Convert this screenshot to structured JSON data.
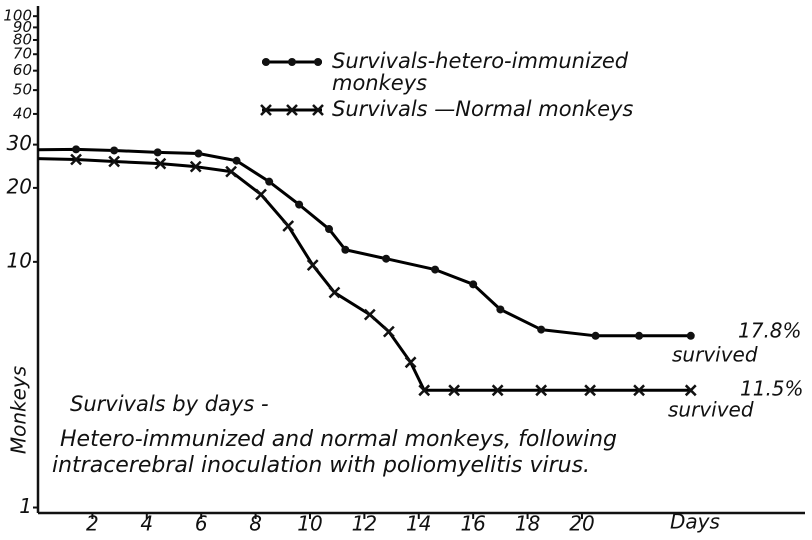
{
  "chart_data": {
    "type": "line",
    "x_label": "Days",
    "y_label": "Monkeys",
    "log_y": true,
    "xlim": [
      0,
      28.2
    ],
    "ylim": [
      0.95,
      110
    ],
    "xticks": [
      2,
      4,
      6,
      8,
      10,
      12,
      14,
      16,
      18,
      20
    ],
    "yticks": [
      1,
      10,
      20,
      30,
      40,
      50,
      60,
      70,
      80,
      90,
      100
    ],
    "series": [
      {
        "name": "Survivals-hetero-immunized monkeys",
        "color": "#000000",
        "marker": "dot",
        "x": [
          0,
          1.4,
          2.8,
          4.4,
          5.9,
          7.3,
          8.5,
          9.6,
          10.7,
          11.3,
          12.8,
          14.6,
          16.0,
          17.0,
          18.5,
          20.5,
          22.1,
          24.0
        ],
        "values": [
          28.6,
          28.7,
          28.4,
          27.9,
          27.6,
          25.8,
          21.2,
          17.1,
          13.6,
          11.2,
          10.3,
          9.3,
          8.1,
          6.4,
          5.3,
          5.0,
          5.0,
          5.0
        ]
      },
      {
        "name": "Survivals —Normal monkeys",
        "color": "#000000",
        "marker": "x",
        "x": [
          0,
          1.4,
          2.8,
          4.5,
          5.8,
          7.1,
          8.2,
          9.2,
          10.1,
          10.9,
          12.2,
          12.9,
          13.7,
          14.2,
          15.3,
          16.9,
          18.5,
          20.3,
          22.1,
          24.0
        ],
        "values": [
          26.3,
          26.1,
          25.6,
          25.1,
          24.4,
          23.3,
          18.8,
          14.0,
          9.7,
          7.5,
          6.1,
          5.2,
          3.9,
          3.0,
          3.0,
          3.0,
          3.0,
          3.0,
          3.0,
          3.0
        ]
      }
    ],
    "annotations": [
      "17.8%",
      "survived",
      "11.5%",
      "survived",
      "Survivals by days -",
      "Hetero-immunized and normal monkeys, following",
      "intracerebral inoculation with poliomyelitis virus."
    ]
  }
}
